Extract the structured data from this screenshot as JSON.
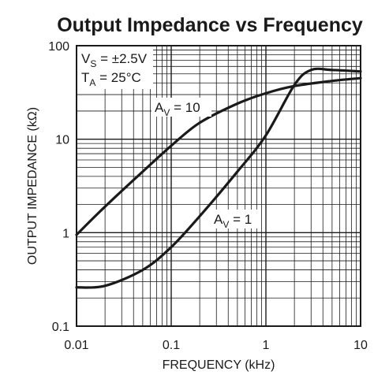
{
  "chart_data": {
    "type": "line",
    "title": "Output Impedance vs Frequency",
    "xlabel": "FREQUENCY (kHz)",
    "ylabel": "OUTPUT IMPEDANCE (kΩ)",
    "x_scale": "log",
    "y_scale": "log",
    "xlim": [
      0.01,
      10
    ],
    "ylim": [
      0.1,
      100
    ],
    "x_ticks": [
      "0.01",
      "0.1",
      "1",
      "10"
    ],
    "y_ticks": [
      "0.1",
      "1",
      "10",
      "100"
    ],
    "grid": true,
    "conditions": {
      "vs": {
        "main": "V",
        "sub": "S",
        "rest": " = ±2.5V"
      },
      "ta": {
        "main": "T",
        "sub": "A",
        "rest": " = 25°C"
      }
    },
    "series": [
      {
        "name": "AV = 10",
        "label": {
          "main": "A",
          "sub": "V",
          "rest": " = 10"
        },
        "x": [
          0.01,
          0.02,
          0.05,
          0.1,
          0.2,
          0.5,
          1,
          2,
          5,
          10
        ],
        "y": [
          0.95,
          1.9,
          4.5,
          8.5,
          15,
          24,
          31,
          37,
          42,
          45
        ]
      },
      {
        "name": "AV = 1",
        "label": {
          "main": "A",
          "sub": "V",
          "rest": " = 1"
        },
        "x": [
          0.01,
          0.02,
          0.05,
          0.1,
          0.2,
          0.5,
          1,
          2,
          3,
          5,
          10
        ],
        "y": [
          0.26,
          0.27,
          0.4,
          0.7,
          1.5,
          4.5,
          11,
          38,
          55,
          55,
          53
        ]
      }
    ]
  }
}
